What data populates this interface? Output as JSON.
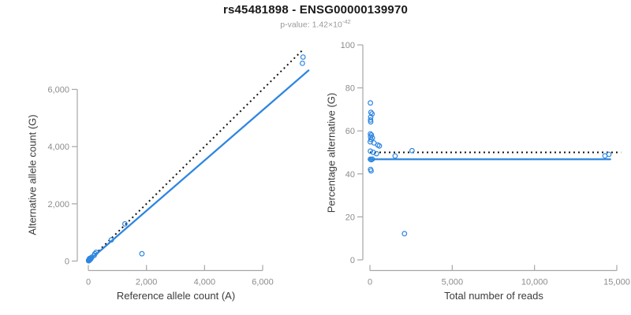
{
  "header": {
    "title": "rs45481898 - ENSG00000139970",
    "subtitle": {
      "prefix": "p-value: ",
      "mantissa": "1.42",
      "times": "×",
      "base": "10",
      "exponent": "-42"
    }
  },
  "colors": {
    "accent_blue": "#2E86E0",
    "ref_line_black": "#111111",
    "axis_line": "#a6a6a6",
    "tick_label": "#8c8c8c",
    "axis_title": "#3b3b3b",
    "title": "#1a1a1a",
    "subtitle": "#9a9a9a",
    "background": "#ffffff"
  },
  "chart_data": [
    {
      "type": "scatter",
      "panel": "left",
      "xlabel": "Reference allele count (A)",
      "ylabel": "Alternative allele count (G)",
      "xticks": [
        0,
        2000,
        4000,
        6000
      ],
      "xtick_labels": [
        "0",
        "2,000",
        "4,000",
        "6,000"
      ],
      "yticks": [
        0,
        2000,
        4000,
        6000
      ],
      "ytick_labels": [
        "0",
        "2,000",
        "4,000",
        "6,000"
      ],
      "xlim": [
        0,
        7700
      ],
      "ylim": [
        0,
        7600
      ],
      "grid": false,
      "legend": "none",
      "points": [
        [
          8,
          22
        ],
        [
          19,
          41
        ],
        [
          42,
          88
        ],
        [
          17,
          33
        ],
        [
          14,
          26
        ],
        [
          18,
          32
        ],
        [
          12,
          18
        ],
        [
          38,
          52
        ],
        [
          17,
          23
        ],
        [
          65,
          85
        ],
        [
          26,
          34
        ],
        [
          9,
          11
        ],
        [
          114,
          136
        ],
        [
          224,
          256
        ],
        [
          270,
          305
        ],
        [
          15,
          15
        ],
        [
          100,
          100
        ],
        [
          202,
          198
        ],
        [
          791,
          739
        ],
        [
          1260,
          1300
        ],
        [
          16,
          14
        ],
        [
          43,
          37
        ],
        [
          80,
          70
        ],
        [
          23,
          17
        ],
        [
          41,
          29
        ],
        [
          1844,
          256
        ],
        [
          7369,
          6911
        ],
        [
          7391,
          7129
        ]
      ],
      "fit_line": {
        "label": "regression fit",
        "style": "solid",
        "x": [
          0,
          7580
        ],
        "y": [
          0,
          6663
        ]
      },
      "ref_line": {
        "label": "identity y = x",
        "style": "dotted",
        "x": [
          0,
          7420
        ],
        "y": [
          0,
          7420
        ]
      }
    },
    {
      "type": "scatter",
      "panel": "right",
      "xlabel": "Total number of reads",
      "ylabel": "Percentage alternative (G)",
      "xticks": [
        0,
        5000,
        10000,
        15000
      ],
      "xtick_labels": [
        "0",
        "5,000",
        "10,000",
        "15,000"
      ],
      "yticks": [
        0,
        20,
        40,
        60,
        80,
        100
      ],
      "ytick_labels": [
        "0",
        "20",
        "40",
        "60",
        "80",
        "100"
      ],
      "xlim": [
        0,
        15300
      ],
      "ylim": [
        0,
        100
      ],
      "grid": false,
      "legend": "none",
      "points": [
        [
          30,
          73
        ],
        [
          60,
          68.6
        ],
        [
          130,
          67.9
        ],
        [
          50,
          66.4
        ],
        [
          40,
          65.1
        ],
        [
          50,
          64.2
        ],
        [
          30,
          58.6
        ],
        [
          90,
          58.1
        ],
        [
          40,
          57.2
        ],
        [
          150,
          56.7
        ],
        [
          60,
          56
        ],
        [
          20,
          54.9
        ],
        [
          250,
          54.4
        ],
        [
          480,
          53.4
        ],
        [
          575,
          53
        ],
        [
          30,
          50.6
        ],
        [
          200,
          50
        ],
        [
          400,
          49.4
        ],
        [
          1530,
          48.3
        ],
        [
          2560,
          50.8
        ],
        [
          30,
          46.8
        ],
        [
          80,
          46.6
        ],
        [
          150,
          46.9
        ],
        [
          40,
          42.1
        ],
        [
          70,
          41.4
        ],
        [
          2100,
          12.2
        ],
        [
          14280,
          48.4
        ],
        [
          14520,
          49.1
        ]
      ],
      "fit_line": {
        "label": "fitted percentage",
        "style": "solid",
        "x": [
          0,
          14600
        ],
        "y": [
          46.8,
          46.8
        ]
      },
      "ref_line": {
        "label": "50% reference",
        "style": "dotted",
        "x": [
          0,
          15250
        ],
        "y": [
          50,
          50
        ]
      }
    }
  ]
}
